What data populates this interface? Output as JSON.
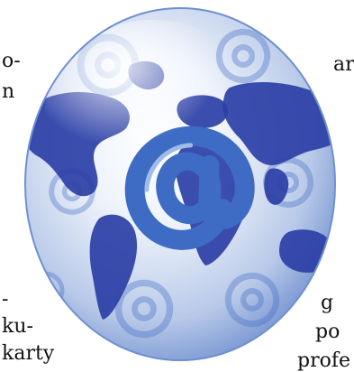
{
  "text_fragments": {
    "left_top_1": "o-",
    "left_top_2": "n",
    "right_top_1": "ar",
    "left_bottom_1": "-",
    "left_bottom_2": "ku-",
    "left_bottom_3": "karty",
    "right_bottom_1": "g",
    "right_bottom_2": "po",
    "right_bottom_3": "profe"
  },
  "colors": {
    "sphere_light": "#eef3fb",
    "sphere_mid": "#b7c8e8",
    "sphere_edge": "#6f8fcf",
    "continents": "#2b3fa6",
    "at_symbol": "#3e6bc4",
    "at_highlight": "#9fbce8"
  },
  "image": {
    "subject": "globe-with-at-symbols"
  }
}
